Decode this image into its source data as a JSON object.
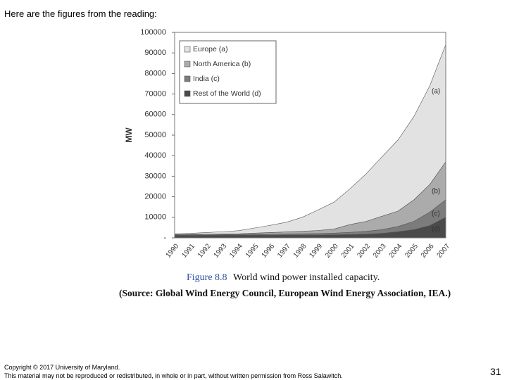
{
  "header": "Here are the figures from the reading:",
  "footer": [
    "Copyright © 2017 University of Maryland.",
    "This material may not be reproduced or redistributed, in whole or in part, without written permission from Ross Salawitch."
  ],
  "page_number": "31",
  "chart_data": {
    "type": "stacked_area",
    "figure_number": "Figure 8.8",
    "title": "World wind power installed capacity.",
    "source": "(Source: Global Wind Energy Council, European Wind Energy Association, IEA.)",
    "y_label": "MW",
    "categories": [
      "1990",
      "1991",
      "1992",
      "1993",
      "1994",
      "1995",
      "1996",
      "1997",
      "1998",
      "1999",
      "2000",
      "2001",
      "2002",
      "2003",
      "2004",
      "2005",
      "2006",
      "2007"
    ],
    "series": [
      {
        "name": "Rest of the World (d)",
        "color": "#4a4a4a",
        "values": [
          1200,
          1200,
          1250,
          1250,
          1300,
          1300,
          1350,
          1350,
          1400,
          1400,
          1500,
          1600,
          1800,
          2200,
          3000,
          4000,
          6000,
          10000
        ]
      },
      {
        "name": "India (c)",
        "color": "#7c7c7c",
        "values": [
          200,
          250,
          250,
          300,
          300,
          400,
          450,
          550,
          600,
          700,
          800,
          1100,
          1400,
          1800,
          2500,
          4000,
          6500,
          8500
        ]
      },
      {
        "name": "North America (b)",
        "color": "#ababab",
        "values": [
          200,
          250,
          300,
          350,
          400,
          600,
          800,
          1000,
          1200,
          1500,
          2000,
          3800,
          4800,
          6500,
          7500,
          10500,
          13500,
          18500
        ]
      },
      {
        "name": "Europe (a)",
        "color": "#e2e2e2",
        "values": [
          400,
          500,
          800,
          1100,
          1500,
          2500,
          3500,
          4700,
          6800,
          10000,
          13100,
          17400,
          23100,
          28900,
          34600,
          40500,
          48000,
          57000
        ]
      }
    ],
    "annotations": [
      "(a)",
      "(b)",
      "(c)",
      "(d)"
    ],
    "ylim": [
      0,
      100000
    ],
    "yticks": [
      {
        "value": 0,
        "label": "-"
      },
      10000,
      20000,
      30000,
      40000,
      50000,
      60000,
      70000,
      80000,
      90000,
      100000
    ],
    "legend": "upper left",
    "grid": false
  }
}
